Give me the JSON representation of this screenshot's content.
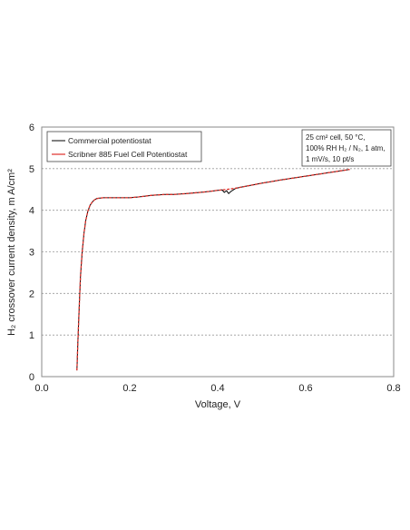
{
  "chart_data": {
    "type": "line",
    "xlabel": "Voltage, V",
    "ylabel": "H₂ crossover current density, m A/cm²",
    "xlim": [
      0,
      0.8
    ],
    "ylim": [
      0,
      6
    ],
    "xticks": [
      "0.0",
      "0.2",
      "0.4",
      "0.6",
      "0.8"
    ],
    "yticks": [
      "0",
      "1",
      "2",
      "3",
      "4",
      "5",
      "6"
    ],
    "grid": "horizontal dotted",
    "legend": {
      "placement": "top-left",
      "entries": [
        "Commercial potentiostat",
        "Scribner 885 Fuel Cell Potentiostat"
      ]
    },
    "annotation": {
      "lines": [
        "25 cm² cell, 50 °C,",
        "100% RH H₂ / N₂, 1 atm,",
        "1 mV/s, 10 pt/s"
      ],
      "placement": "top-right"
    },
    "series": [
      {
        "name": "Commercial potentiostat",
        "color": "#000000",
        "x": [
          0.08,
          0.082,
          0.085,
          0.088,
          0.092,
          0.096,
          0.1,
          0.105,
          0.11,
          0.115,
          0.12,
          0.125,
          0.13,
          0.14,
          0.15,
          0.17,
          0.2,
          0.22,
          0.25,
          0.28,
          0.3,
          0.33,
          0.36,
          0.38,
          0.4,
          0.41,
          0.415,
          0.42,
          0.425,
          0.43,
          0.44,
          0.45,
          0.5,
          0.55,
          0.6,
          0.65,
          0.7
        ],
        "y": [
          0.15,
          0.8,
          1.6,
          2.4,
          3.0,
          3.45,
          3.75,
          3.98,
          4.12,
          4.2,
          4.25,
          4.28,
          4.29,
          4.3,
          4.3,
          4.3,
          4.3,
          4.32,
          4.36,
          4.38,
          4.38,
          4.4,
          4.43,
          4.45,
          4.48,
          4.49,
          4.43,
          4.47,
          4.4,
          4.45,
          4.52,
          4.55,
          4.65,
          4.74,
          4.82,
          4.9,
          4.98
        ]
      },
      {
        "name": "Scribner 885 Fuel Cell Potentiostat",
        "color": "#e0302a",
        "x": [
          0.08,
          0.082,
          0.085,
          0.088,
          0.092,
          0.096,
          0.1,
          0.105,
          0.11,
          0.115,
          0.12,
          0.125,
          0.13,
          0.14,
          0.15,
          0.17,
          0.2,
          0.22,
          0.25,
          0.28,
          0.3,
          0.33,
          0.36,
          0.38,
          0.4,
          0.42,
          0.44,
          0.45,
          0.5,
          0.55,
          0.6,
          0.65,
          0.7
        ],
        "y": [
          0.15,
          0.8,
          1.6,
          2.4,
          3.0,
          3.45,
          3.75,
          3.98,
          4.12,
          4.2,
          4.25,
          4.28,
          4.29,
          4.3,
          4.3,
          4.3,
          4.3,
          4.32,
          4.36,
          4.38,
          4.38,
          4.4,
          4.43,
          4.45,
          4.48,
          4.5,
          4.53,
          4.55,
          4.65,
          4.74,
          4.82,
          4.9,
          4.98
        ]
      }
    ]
  }
}
